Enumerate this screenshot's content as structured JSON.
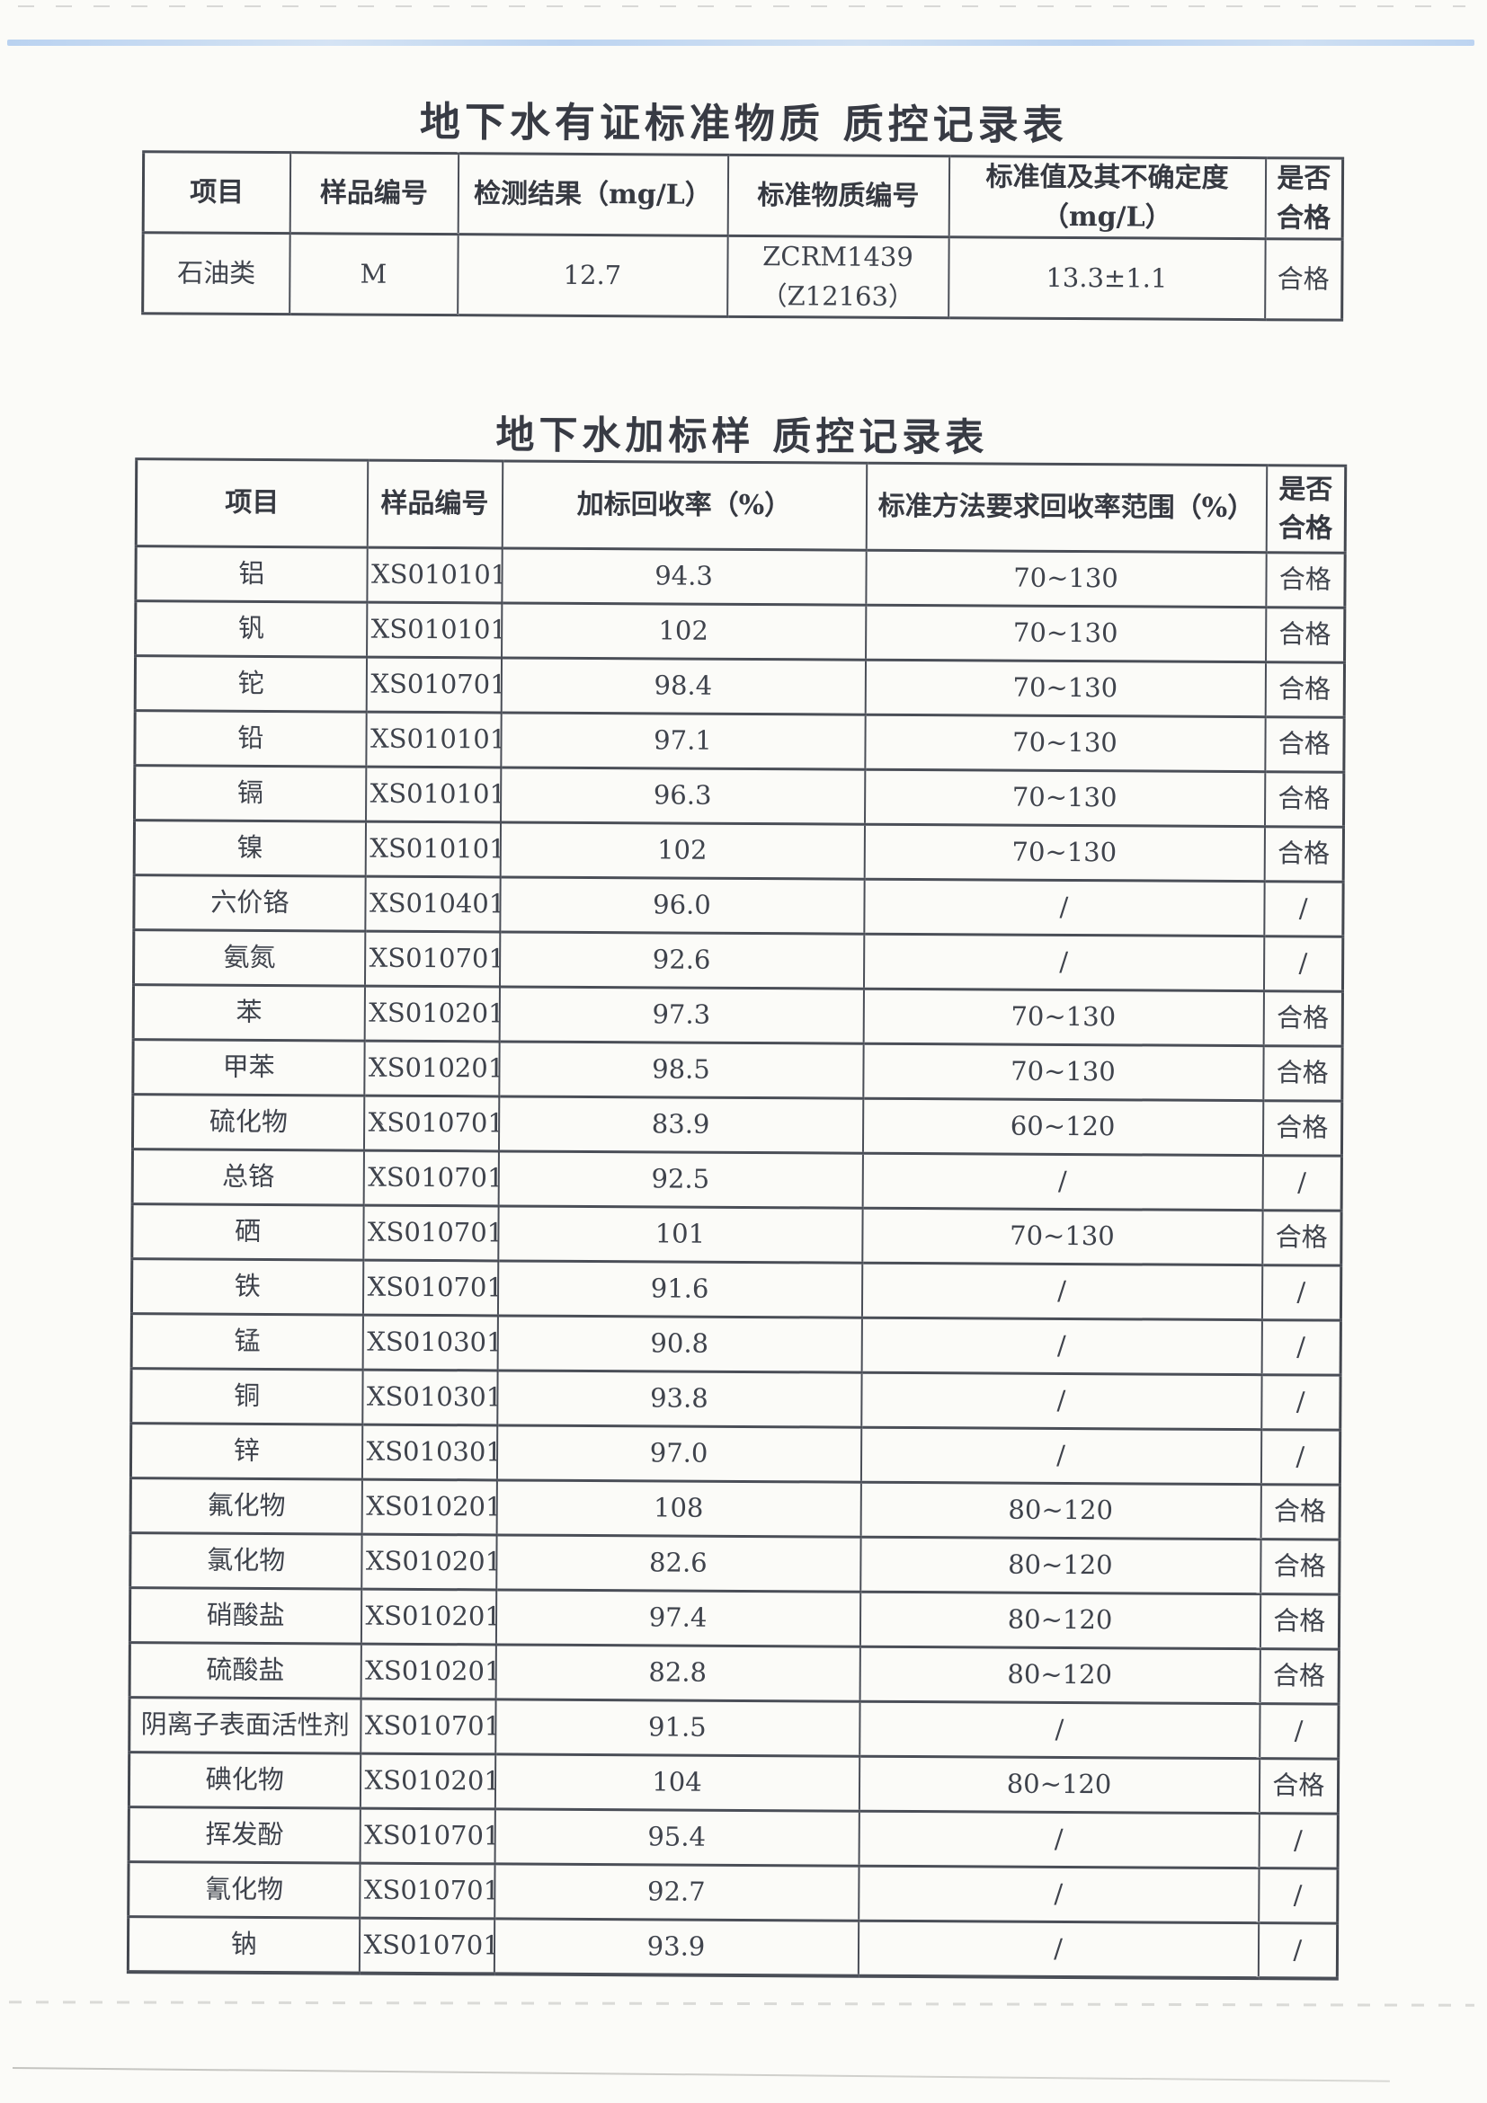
{
  "page": {
    "background": "#fbfbf8",
    "top_line_color": "#b6d0f0",
    "border_color": "#4a4e57",
    "text_color": "#3f434c"
  },
  "artifacts": {
    "tick_mark": "`"
  },
  "table1": {
    "title": "地下水有证标准物质 质控记录表",
    "headers": [
      "项目",
      "样品编号",
      "检测结果（mg/L）",
      "标准物质编号",
      "标准值及其不确定度\n（mg/L）",
      "是否\n合格"
    ],
    "rows": [
      [
        "石油类",
        "M",
        "12.7",
        "ZCRM1439\n（Z12163）",
        "13.3±1.1",
        "合格"
      ]
    ]
  },
  "table2": {
    "title": "地下水加标样 质控记录表",
    "headers": [
      "项目",
      "样品编号",
      "加标回收率（%）",
      "标准方法要求回收率范围（%）",
      "是否\n合格"
    ],
    "rows": [
      [
        "铝",
        "XS010101",
        "94.3",
        "70~130",
        "合格"
      ],
      [
        "钒",
        "XS010101",
        "102",
        "70~130",
        "合格"
      ],
      [
        "铊",
        "XS010701",
        "98.4",
        "70~130",
        "合格"
      ],
      [
        "铅",
        "XS010101",
        "97.1",
        "70~130",
        "合格"
      ],
      [
        "镉",
        "XS010101",
        "96.3",
        "70~130",
        "合格"
      ],
      [
        "镍",
        "XS010101",
        "102",
        "70~130",
        "合格"
      ],
      [
        "六价铬",
        "XS010401",
        "96.0",
        "/",
        "/"
      ],
      [
        "氨氮",
        "XS010701",
        "92.6",
        "/",
        "/"
      ],
      [
        "苯",
        "XS010201",
        "97.3",
        "70~130",
        "合格"
      ],
      [
        "甲苯",
        "XS010201",
        "98.5",
        "70~130",
        "合格"
      ],
      [
        "硫化物",
        "XS010701",
        "83.9",
        "60~120",
        "合格"
      ],
      [
        "总铬",
        "XS010701",
        "92.5",
        "/",
        "/"
      ],
      [
        "硒",
        "XS010701",
        "101",
        "70~130",
        "合格"
      ],
      [
        "铁",
        "XS010701",
        "91.6",
        "/",
        "/"
      ],
      [
        "锰",
        "XS010301",
        "90.8",
        "/",
        "/"
      ],
      [
        "铜",
        "XS010301",
        "93.8",
        "/",
        "/"
      ],
      [
        "锌",
        "XS010301",
        "97.0",
        "/",
        "/"
      ],
      [
        "氟化物",
        "XS010201",
        "108",
        "80~120",
        "合格"
      ],
      [
        "氯化物",
        "XS010201",
        "82.6",
        "80~120",
        "合格"
      ],
      [
        "硝酸盐",
        "XS010201",
        "97.4",
        "80~120",
        "合格"
      ],
      [
        "硫酸盐",
        "XS010201",
        "82.8",
        "80~120",
        "合格"
      ],
      [
        "阴离子表面活性剂",
        "XS010701",
        "91.5",
        "/",
        "/"
      ],
      [
        "碘化物",
        "XS010201",
        "104",
        "80~120",
        "合格"
      ],
      [
        "挥发酚",
        "XS010701",
        "95.4",
        "/",
        "/"
      ],
      [
        "氰化物",
        "XS010701",
        "92.7",
        "/",
        "/"
      ],
      [
        "钠",
        "XS010701",
        "93.9",
        "/",
        "/"
      ]
    ]
  }
}
